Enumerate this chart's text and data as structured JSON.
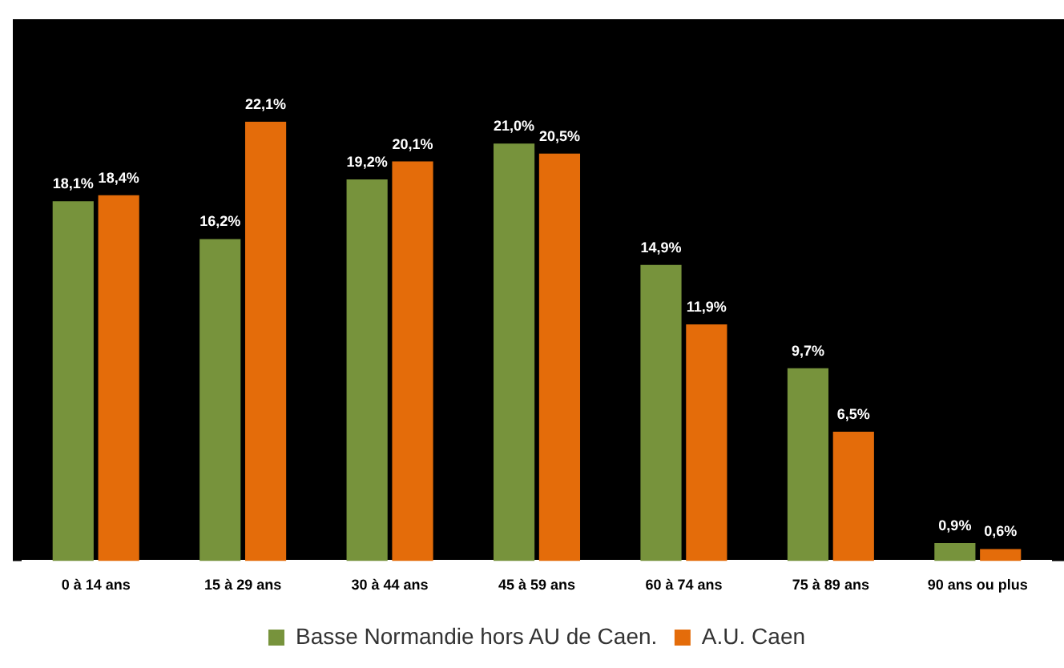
{
  "chart_data": {
    "type": "bar",
    "categories": [
      "0 à 14 ans",
      "15 à 29 ans",
      "30 à 44 ans",
      "45 à 59 ans",
      "60 à 74 ans",
      "75 à 89 ans",
      "90 ans ou plus"
    ],
    "series": [
      {
        "name": "Basse Normandie hors AU de Caen.",
        "color": "#77933c",
        "values": [
          18.1,
          16.2,
          19.2,
          21.0,
          14.9,
          9.7,
          0.9
        ],
        "value_labels": [
          "18,1%",
          "16,2%",
          "19,2%",
          "21,0%",
          "14,9%",
          "9,7%",
          "0,9%"
        ]
      },
      {
        "name": "A.U. Caen",
        "color": "#e46c0a",
        "values": [
          18.4,
          22.1,
          20.1,
          20.5,
          11.9,
          6.5,
          0.6
        ],
        "value_labels": [
          "18,4%",
          "22,1%",
          "20,1%",
          "20,5%",
          "11,9%",
          "6,5%",
          "0,6%"
        ]
      }
    ],
    "legend": "bottom"
  }
}
